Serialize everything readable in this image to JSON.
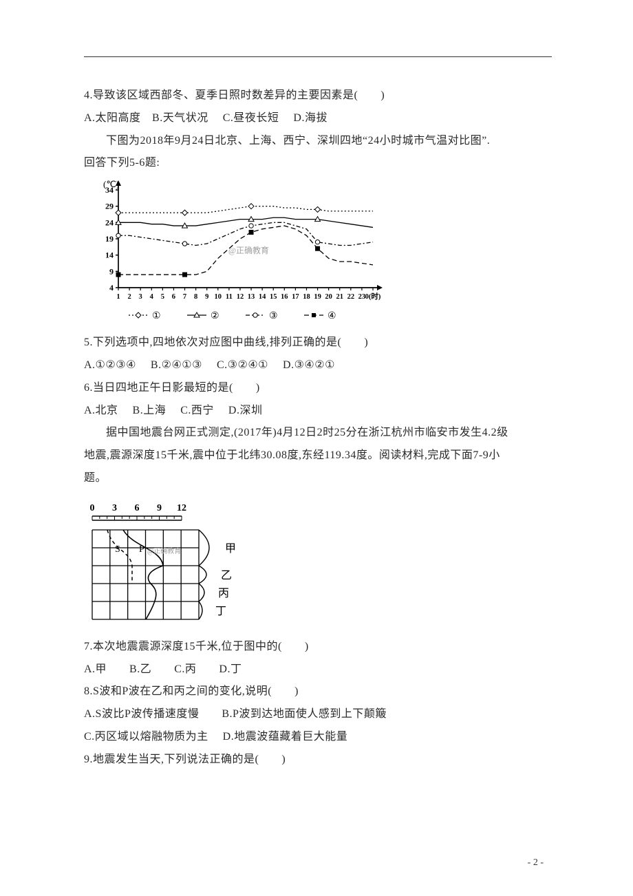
{
  "page": {
    "bg": "#ffffff",
    "text_color": "#2a2a2a",
    "font_size": 16,
    "page_num": "- 2 -"
  },
  "q4": {
    "stem": "4.导致该区域西部冬、夏季日照时数差异的主要因素是(　　)",
    "opts": "A.太阳高度　B.天气状况　 C.昼夜长短　 D.海拔"
  },
  "intro56_1": "下图为2018年9月24日北京、上海、西宁、深圳四地“24小时城市气温对比图”.",
  "intro56_2": "回答下列5-6题:",
  "temp_chart": {
    "type": "line",
    "title_unit": "(℃)",
    "ylim": [
      4,
      34
    ],
    "ytick_labels": [
      "4",
      "9",
      "14",
      "19",
      "24",
      "29",
      "34"
    ],
    "xtick_labels": [
      "1",
      "2",
      "3",
      "4",
      "5",
      "6",
      "7",
      "8",
      "9",
      "10",
      "11",
      "12",
      "13",
      "14",
      "15",
      "16",
      "17",
      "18",
      "19",
      "20",
      "21",
      "22",
      "23",
      "0(时)"
    ],
    "watermark": "@正确教育",
    "legend": [
      {
        "marker": "diamond",
        "label": "①",
        "color": "#000000",
        "dash": "dot"
      },
      {
        "marker": "triangle",
        "label": "②",
        "color": "#000000",
        "dash": "solid"
      },
      {
        "marker": "circle",
        "label": "③",
        "color": "#000000",
        "dash": "dashdot"
      },
      {
        "marker": "square",
        "label": "④",
        "color": "#000000",
        "dash": "dash"
      }
    ],
    "series": {
      "s1": [
        27,
        27,
        27,
        27,
        27,
        27,
        27,
        27,
        27,
        27.5,
        28,
        28.5,
        29,
        29,
        29,
        28.5,
        28.5,
        28,
        28,
        27.5,
        27.5,
        27.5,
        27.5,
        27.5
      ],
      "s2": [
        24,
        24,
        24,
        23.5,
        23.5,
        23,
        23,
        23,
        23.5,
        24,
        24.5,
        25,
        25,
        25,
        25.5,
        25.5,
        25,
        25,
        25,
        24.5,
        24,
        23.5,
        23,
        22.5
      ],
      "s3": [
        20,
        20,
        19.5,
        19,
        18.5,
        18,
        17.5,
        17,
        17.5,
        19,
        20.5,
        22,
        23,
        23.5,
        24,
        24,
        23,
        22,
        18,
        17.5,
        17,
        17,
        17.5,
        18
      ],
      "s4": [
        8,
        8,
        8,
        8,
        8,
        8,
        8,
        8,
        9,
        13,
        16,
        19,
        21,
        22,
        22.5,
        23,
        22,
        20,
        16,
        13,
        12,
        12,
        11.5,
        11
      ]
    },
    "colors": {
      "axis": "#000000",
      "grid": "#000000",
      "watermark": "#a0a0a0"
    }
  },
  "q5": {
    "stem": "5.下列选项中,四地依次对应图中曲线,排列正确的是(　　)",
    "opts": "A.①②③④　 B.②④①③　 C.③②④①　 D.③④②①"
  },
  "q6": {
    "stem": "6.当日四地正午日影最短的是(　　)",
    "opts": "A.北京　 B.上海　 C.西宁　 D.深圳"
  },
  "intro79_1": "据中国地震台网正式测定,(2017年)4月12日2时25分在浙江杭州市临安市发生4.2级",
  "intro79_2": "地震,震源深度15千米,震中位于北纬30.08度,东经119.34度。阅读材料,完成下面7-9小",
  "intro79_3": "题。",
  "seis_diag": {
    "type": "diagram",
    "ruler_labels": [
      "0",
      "3",
      "6",
      "9",
      "12"
    ],
    "row_labels": [
      "甲",
      "乙",
      "丙",
      "丁"
    ],
    "curve_labels": [
      "S",
      "P"
    ],
    "watermark": "@正确教育",
    "colors": {
      "line": "#000000",
      "bg": "#ffffff",
      "watermark": "#a0a0a0"
    }
  },
  "q7": {
    "stem": "7.本次地震震源深度15千米,位于图中的(　　)",
    "opts": "A.甲　　B.乙　　C.丙　　D.丁"
  },
  "q8": {
    "stem": "8.S波和P波在乙和丙之间的变化,说明(　　)",
    "optA": "A.S波比P波传播速度慢　　B.P波到达地面使人感到上下颠簸",
    "optB": "C.丙区域以熔融物质为主　 D.地震波蕴藏着巨大能量"
  },
  "q9": {
    "stem": "9.地震发生当天,下列说法正确的是(　　)"
  }
}
